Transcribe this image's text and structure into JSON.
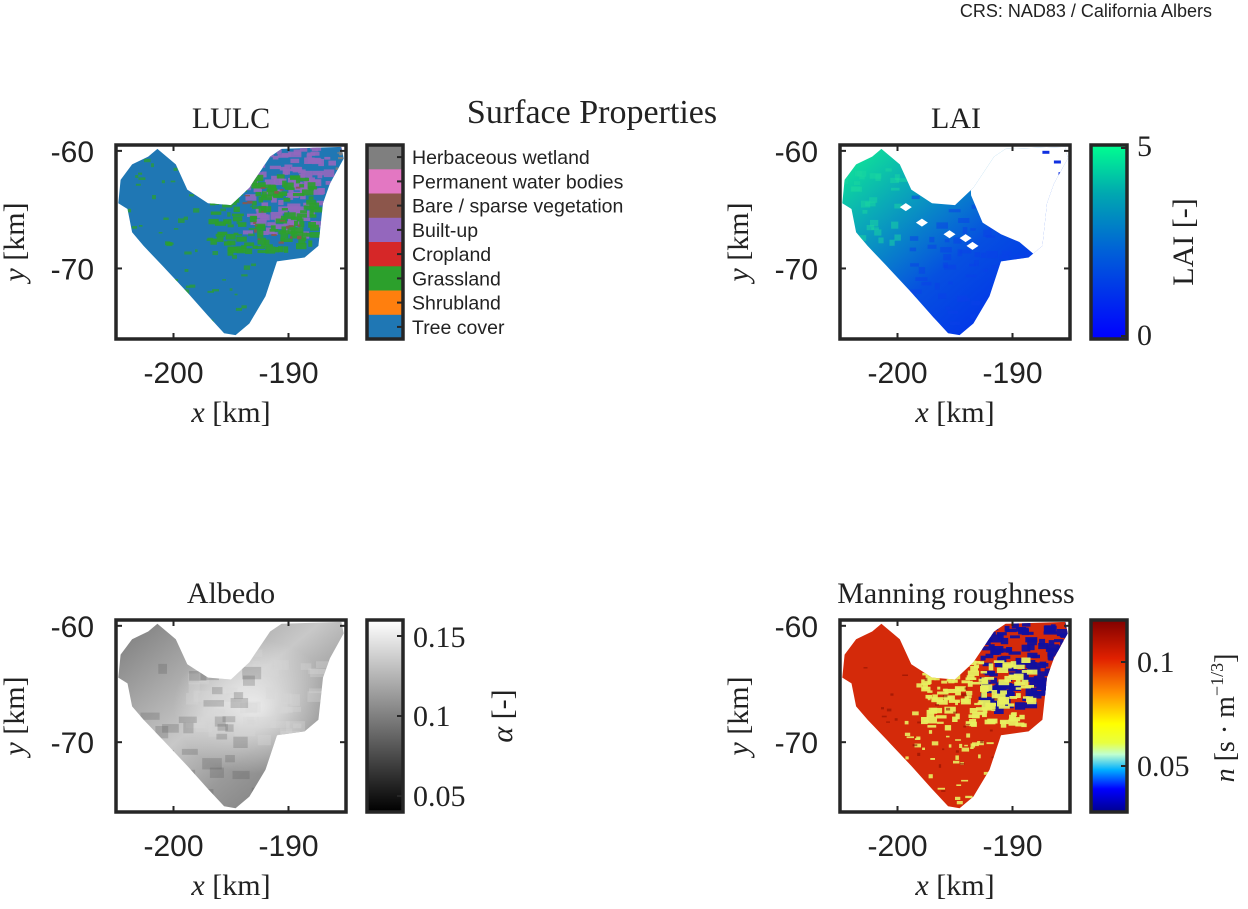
{
  "figure": {
    "crs_note": "CRS: NAD83 / California Albers",
    "suptitle": "Surface Properties"
  },
  "axes_common": {
    "xlabel_var": "x",
    "ylabel_var": "y",
    "unit": "[km]",
    "xticks": [
      "-200",
      "-190"
    ],
    "yticks": [
      "-60",
      "-70"
    ],
    "xlim": [
      -205,
      -185
    ],
    "ylim": [
      -76,
      -59.5
    ]
  },
  "panels": {
    "lulc": {
      "title": "LULC",
      "legend": [
        {
          "label": "Herbaceous wetland",
          "color": "#7f7f7f"
        },
        {
          "label": "Permanent water bodies",
          "color": "#e377c2"
        },
        {
          "label": "Bare / sparse vegetation",
          "color": "#8c564b"
        },
        {
          "label": "Built-up",
          "color": "#9467bd"
        },
        {
          "label": "Cropland",
          "color": "#d62728"
        },
        {
          "label": "Grassland",
          "color": "#2ca02c"
        },
        {
          "label": "Shrubland",
          "color": "#ff7f0e"
        },
        {
          "label": "Tree cover",
          "color": "#1f77b4"
        }
      ]
    },
    "lai": {
      "title": "LAI",
      "colorbar_label": "LAI [-]",
      "colorbar_ticks": [
        "5",
        "0"
      ],
      "colorbar_range": [
        0,
        5
      ]
    },
    "albedo": {
      "title": "Albedo",
      "colorbar_label_var": "α",
      "colorbar_label_unit": "[-]",
      "colorbar_ticks": [
        "0.15",
        "0.1",
        "0.05"
      ],
      "colorbar_range": [
        0.045,
        0.165
      ]
    },
    "manning": {
      "title": "Manning roughness",
      "colorbar_label_var": "n",
      "colorbar_label_unit": "[s · m",
      "colorbar_label_exp": "−1/3",
      "colorbar_label_close": "]",
      "colorbar_ticks": [
        "0.1",
        "0.05"
      ],
      "colorbar_range": [
        0.03,
        0.12
      ]
    }
  },
  "chart_data": [
    {
      "type": "heatmap",
      "title": "LULC",
      "xlabel": "x [km]",
      "ylabel": "y [km]",
      "xlim": [
        -205,
        -185
      ],
      "ylim": [
        -76,
        -59.5
      ],
      "categories": [
        "Herbaceous wetland",
        "Permanent water bodies",
        "Bare / sparse vegetation",
        "Built-up",
        "Cropland",
        "Grassland",
        "Shrubland",
        "Tree cover"
      ]
    },
    {
      "type": "heatmap",
      "title": "LAI",
      "xlabel": "x [km]",
      "ylabel": "y [km]",
      "xlim": [
        -205,
        -185
      ],
      "ylim": [
        -76,
        -59.5
      ],
      "colorbar": {
        "label": "LAI [-]",
        "range": [
          0,
          5
        ]
      }
    },
    {
      "type": "heatmap",
      "title": "Albedo",
      "xlabel": "x [km]",
      "ylabel": "y [km]",
      "xlim": [
        -205,
        -185
      ],
      "ylim": [
        -76,
        -59.5
      ],
      "colorbar": {
        "label": "α [-]",
        "range": [
          0.045,
          0.165
        ],
        "ticks": [
          0.05,
          0.1,
          0.15
        ]
      }
    },
    {
      "type": "heatmap",
      "title": "Manning roughness",
      "xlabel": "x [km]",
      "ylabel": "y [km]",
      "xlim": [
        -205,
        -185
      ],
      "ylim": [
        -76,
        -59.5
      ],
      "colorbar": {
        "label": "n [s·m^-1/3]",
        "range": [
          0.03,
          0.12
        ],
        "ticks": [
          0.05,
          0.1
        ]
      }
    }
  ]
}
